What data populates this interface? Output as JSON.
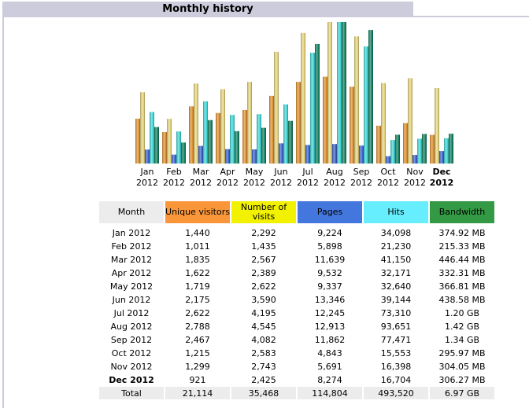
{
  "section": {
    "title": "Monthly history"
  },
  "colors": {
    "title_bg": "#ccccdd",
    "month_header_bg": "#ececec",
    "unique_visitors": "#f9963a",
    "visits": "#f2f200",
    "pages": "#4477dd",
    "hits": "#66eeff",
    "bandwidth": "#339944",
    "total_bg": "#ececec"
  },
  "chart_data": {
    "type": "bar",
    "title": "Monthly history",
    "categories": [
      "Jan 2012",
      "Feb 2012",
      "Mar 2012",
      "Apr 2012",
      "May 2012",
      "Jun 2012",
      "Jul 2012",
      "Aug 2012",
      "Sep 2012",
      "Oct 2012",
      "Nov 2012",
      "Dec 2012"
    ],
    "category_labels": [
      {
        "month": "Jan",
        "year": "2012",
        "bold": false
      },
      {
        "month": "Feb",
        "year": "2012",
        "bold": false
      },
      {
        "month": "Mar",
        "year": "2012",
        "bold": false
      },
      {
        "month": "Apr",
        "year": "2012",
        "bold": false
      },
      {
        "month": "May",
        "year": "2012",
        "bold": false
      },
      {
        "month": "Jun",
        "year": "2012",
        "bold": false
      },
      {
        "month": "Jul",
        "year": "2012",
        "bold": false
      },
      {
        "month": "Aug",
        "year": "2012",
        "bold": false
      },
      {
        "month": "Sep",
        "year": "2012",
        "bold": false
      },
      {
        "month": "Oct",
        "year": "2012",
        "bold": false
      },
      {
        "month": "Nov",
        "year": "2012",
        "bold": false
      },
      {
        "month": "Dec",
        "year": "2012",
        "bold": true
      }
    ],
    "series": [
      {
        "name": "Unique visitors",
        "key": "unique",
        "color": "#e09030",
        "scale_group": "visits",
        "values": [
          1440,
          1011,
          1835,
          1622,
          1719,
          2175,
          2622,
          2788,
          2467,
          1215,
          1299,
          921
        ]
      },
      {
        "name": "Number of visits",
        "key": "visits",
        "color": "#e6d47a",
        "scale_group": "visits",
        "values": [
          2292,
          1435,
          2567,
          2389,
          2622,
          3590,
          4195,
          4545,
          4082,
          2583,
          2743,
          2425
        ]
      },
      {
        "name": "Pages",
        "key": "pages",
        "color": "#3c64d0",
        "scale_group": "hits",
        "values": [
          9224,
          5898,
          11639,
          9532,
          9337,
          13346,
          12245,
          12913,
          11862,
          4843,
          5691,
          8274
        ]
      },
      {
        "name": "Hits",
        "key": "hits",
        "color": "#3ed6d6",
        "scale_group": "hits",
        "values": [
          34098,
          21230,
          41150,
          32171,
          32640,
          39144,
          73310,
          93651,
          77471,
          15553,
          16398,
          16704
        ]
      },
      {
        "name": "Bandwidth (MB)",
        "key": "bandwidth",
        "color": "#128060",
        "scale_group": "bandwidth",
        "values": [
          374.92,
          215.33,
          446.44,
          332.31,
          366.81,
          438.58,
          1228.8,
          1454.08,
          1372.16,
          295.97,
          304.05,
          306.27
        ]
      }
    ],
    "xlabel": "",
    "ylabel": "",
    "grid": false,
    "legend": "none"
  },
  "table": {
    "headers": [
      "Month",
      "Unique visitors",
      "Number of visits",
      "Pages",
      "Hits",
      "Bandwidth"
    ],
    "rows": [
      [
        "Jan 2012",
        "1,440",
        "2,292",
        "9,224",
        "34,098",
        "374.92 MB"
      ],
      [
        "Feb 2012",
        "1,011",
        "1,435",
        "5,898",
        "21,230",
        "215.33 MB"
      ],
      [
        "Mar 2012",
        "1,835",
        "2,567",
        "11,639",
        "41,150",
        "446.44 MB"
      ],
      [
        "Apr 2012",
        "1,622",
        "2,389",
        "9,532",
        "32,171",
        "332.31 MB"
      ],
      [
        "May 2012",
        "1,719",
        "2,622",
        "9,337",
        "32,640",
        "366.81 MB"
      ],
      [
        "Jun 2012",
        "2,175",
        "3,590",
        "13,346",
        "39,144",
        "438.58 MB"
      ],
      [
        "Jul 2012",
        "2,622",
        "4,195",
        "12,245",
        "73,310",
        "1.20 GB"
      ],
      [
        "Aug 2012",
        "2,788",
        "4,545",
        "12,913",
        "93,651",
        "1.42 GB"
      ],
      [
        "Sep 2012",
        "2,467",
        "4,082",
        "11,862",
        "77,471",
        "1.34 GB"
      ],
      [
        "Oct 2012",
        "1,215",
        "2,583",
        "4,843",
        "15,553",
        "295.97 MB"
      ],
      [
        "Nov 2012",
        "1,299",
        "2,743",
        "5,691",
        "16,398",
        "304.05 MB"
      ],
      [
        "Dec 2012",
        "921",
        "2,425",
        "8,274",
        "16,704",
        "306.27 MB"
      ]
    ],
    "bold_row_index": 11,
    "total": [
      "Total",
      "21,114",
      "35,468",
      "114,804",
      "493,520",
      "6.97 GB"
    ]
  }
}
